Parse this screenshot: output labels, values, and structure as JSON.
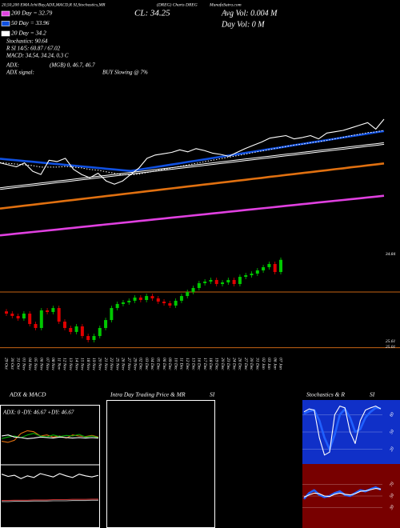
{
  "chart_data": [
    {
      "type": "line",
      "title": "20,50,200 EMA Ichi/Buy,ADX,MACD,R SI,Stochastics,MR",
      "subtitle": "(DREG) Charts DREG",
      "source": "MunafaSutra.com",
      "close_label": "CL: 34.25",
      "avg_vol": "Avg Vol: 0.004  M",
      "day_vol": "Day Vol: 0  M",
      "notes": [
        "Stochastics: 90.64",
        "R SI 14/5: 60.87 / 67.02",
        "MACD: 34.54, 34.24, 0.3 C",
        "ADX:",
        "(MGB) 0, 46.7, 46.7",
        "ADX signal:",
        "BUY Slowing @ 7%"
      ],
      "ylim": [
        18.5,
        49.8
      ],
      "series": [
        {
          "color": "#e040e0",
          "style": "thick",
          "name": "200 Day = 32.79",
          "values": [
            19.1,
            19.21,
            19.32,
            19.43,
            19.54,
            19.65,
            19.76,
            19.87,
            19.98,
            20.09,
            20.2,
            20.31,
            20.42,
            20.53,
            20.64,
            20.75,
            20.86,
            20.97,
            21.08,
            21.19,
            21.3,
            21.41,
            21.52,
            21.63,
            21.74,
            21.85,
            21.96,
            22.07,
            22.18,
            22.29,
            22.4,
            22.51,
            22.62,
            22.73,
            22.84,
            22.95,
            23.06,
            23.17,
            23.28,
            23.39,
            23.5,
            23.61,
            23.72,
            23.83,
            23.94,
            24.05,
            24.16,
            24.27
          ]
        },
        {
          "color": "#e07010",
          "style": "thick",
          "values": [
            22.6,
            22.73,
            22.85,
            22.98,
            23.1,
            23.23,
            23.35,
            23.48,
            23.6,
            23.73,
            23.85,
            23.98,
            24.1,
            24.23,
            24.35,
            24.48,
            24.6,
            24.73,
            24.85,
            24.98,
            25.1,
            25.23,
            25.35,
            25.48,
            25.6,
            25.73,
            25.85,
            25.98,
            26.1,
            26.23,
            26.35,
            26.48,
            26.6,
            26.73,
            26.85,
            26.98,
            27.1,
            27.23,
            27.35,
            27.48,
            27.6,
            27.73,
            27.85,
            27.98,
            28.1,
            28.23,
            28.35,
            28.48
          ]
        },
        {
          "color": "#ffffff",
          "style": "double",
          "values": [
            25.2,
            25.33,
            25.45,
            25.58,
            25.7,
            25.83,
            25.95,
            26.08,
            26.2,
            26.33,
            26.45,
            26.58,
            26.7,
            26.83,
            26.95,
            27.08,
            27.2,
            27.33,
            27.45,
            27.58,
            27.7,
            27.83,
            27.95,
            28.08,
            28.2,
            28.33,
            28.45,
            28.58,
            28.7,
            28.83,
            28.95,
            29.08,
            29.2,
            29.33,
            29.45,
            29.58,
            29.7,
            29.83,
            29.95,
            30.08,
            30.2,
            30.33,
            30.45,
            30.58,
            30.7,
            30.83,
            30.95,
            31.08
          ]
        },
        {
          "color": "#1050e0",
          "style": "thick",
          "name": "50 Day = 33.96",
          "values": [
            29.1,
            29.0,
            28.9,
            28.8,
            28.7,
            28.6,
            28.5,
            28.4,
            28.3,
            28.2,
            28.1,
            28.0,
            27.9,
            27.8,
            27.7,
            27.6,
            27.5,
            27.67,
            27.84,
            28.0,
            28.17,
            28.34,
            28.51,
            28.68,
            28.84,
            29.01,
            29.18,
            29.35,
            29.52,
            29.68,
            29.85,
            30.02,
            30.19,
            30.36,
            30.52,
            30.69,
            30.86,
            31.03,
            31.2,
            31.36,
            31.53,
            31.7,
            31.87,
            32.04,
            32.2,
            32.37,
            32.54,
            32.7
          ]
        },
        {
          "color": "#ffffff",
          "style": "dotted",
          "name": "20 Day = 34.2",
          "values": [
            28.6,
            28.5,
            28.4,
            28.3,
            28.2,
            28.0,
            28.0,
            28.0,
            28.1,
            28.0,
            27.9,
            27.7,
            27.6,
            27.4,
            27.2,
            27.0,
            27.0,
            27.1,
            27.3,
            27.5,
            27.7,
            27.9,
            28.1,
            28.3,
            28.5,
            28.7,
            28.9,
            29.1,
            29.3,
            29.5,
            29.7,
            29.9,
            30.1,
            30.3,
            30.5,
            30.7,
            30.9,
            31.0,
            31.2,
            31.3,
            31.5,
            31.7,
            31.9,
            32.1,
            32.3,
            32.5,
            32.6,
            32.8
          ]
        },
        {
          "color": "#ffffff",
          "style": "solid",
          "values": [
            28.56,
            28.31,
            28.05,
            28.56,
            27.46,
            27.04,
            28.9,
            28.73,
            29.15,
            27.71,
            27.04,
            26.62,
            27.21,
            26.19,
            25.77,
            26.19,
            27.04,
            27.88,
            29.15,
            29.58,
            29.75,
            29.92,
            30.26,
            30.0,
            30.42,
            30.17,
            29.83,
            29.66,
            29.41,
            29.92,
            30.42,
            30.85,
            31.27,
            31.78,
            31.95,
            32.12,
            31.69,
            31.86,
            32.12,
            31.69,
            32.45,
            32.62,
            32.79,
            33.13,
            33.47,
            33.81,
            32.96,
            34.25
          ]
        }
      ]
    },
    {
      "type": "candlestick",
      "categories": [
        "29 Oct",
        "30 Oct",
        "31 Oct",
        "01 Nov",
        "04 Nov",
        "05 Nov",
        "06 Nov",
        "07 Nov",
        "08 Nov",
        "11 Nov",
        "12 Nov",
        "13 Nov",
        "14 Nov",
        "15 Nov",
        "18 Nov",
        "19 Nov",
        "20 Nov",
        "21 Nov",
        "22 Nov",
        "25 Nov",
        "26 Nov",
        "27 Nov",
        "29 Nov",
        "02 Dec",
        "03 Dec",
        "04 Dec",
        "05 Dec",
        "06 Dec",
        "09 Dec",
        "10 Dec",
        "11 Dec",
        "12 Dec",
        "13 Dec",
        "16 Dec",
        "17 Dec",
        "18 Dec",
        "19 Dec",
        "20 Dec",
        "23 Dec",
        "24 Dec",
        "26 Dec",
        "27 Dec",
        "30 Dec",
        "31 Dec",
        "02 Jan",
        "03 Jan",
        "06 Jan",
        "07 Jan"
      ],
      "open": [
        28.8,
        28.56,
        28.31,
        28.05,
        28.56,
        27.46,
        27.04,
        28.9,
        28.73,
        29.15,
        27.71,
        27.04,
        26.62,
        27.21,
        26.19,
        25.77,
        26.19,
        27.04,
        27.88,
        29.15,
        29.58,
        29.75,
        29.92,
        30.26,
        30.0,
        30.42,
        30.17,
        29.83,
        29.66,
        29.41,
        29.92,
        30.42,
        30.85,
        31.27,
        31.78,
        31.95,
        32.12,
        31.69,
        31.86,
        32.12,
        31.69,
        32.45,
        32.62,
        32.79,
        33.13,
        33.47,
        33.81,
        32.96
      ],
      "high": [
        29.05,
        28.81,
        28.56,
        28.81,
        28.81,
        27.71,
        29.15,
        29.15,
        29.4,
        29.4,
        27.96,
        27.29,
        27.46,
        27.46,
        26.44,
        26.44,
        27.29,
        28.13,
        29.4,
        29.83,
        30.0,
        30.17,
        30.51,
        30.51,
        30.67,
        30.67,
        30.42,
        30.08,
        29.91,
        30.17,
        30.67,
        31.1,
        31.52,
        32.03,
        32.2,
        32.37,
        32.37,
        32.11,
        32.37,
        32.37,
        32.7,
        32.87,
        33.04,
        33.38,
        33.72,
        34.06,
        34.06,
        34.5
      ],
      "low": [
        28.31,
        28.06,
        27.8,
        27.8,
        27.21,
        26.79,
        26.79,
        28.48,
        28.48,
        27.46,
        26.79,
        26.37,
        26.37,
        25.94,
        25.52,
        25.52,
        25.94,
        26.79,
        27.63,
        28.9,
        29.33,
        29.5,
        29.67,
        29.75,
        29.75,
        29.92,
        29.58,
        29.41,
        29.16,
        29.16,
        29.67,
        30.17,
        30.6,
        31.02,
        31.53,
        31.7,
        31.44,
        31.44,
        31.61,
        31.44,
        31.44,
        32.2,
        32.37,
        32.54,
        32.88,
        33.22,
        32.71,
        32.71
      ],
      "close": [
        28.56,
        28.31,
        28.05,
        28.56,
        27.46,
        27.04,
        28.9,
        28.73,
        29.15,
        27.71,
        27.04,
        26.62,
        27.21,
        26.19,
        25.77,
        26.19,
        27.04,
        27.88,
        29.15,
        29.58,
        29.75,
        29.92,
        30.26,
        30.0,
        30.42,
        30.17,
        29.83,
        29.66,
        29.41,
        29.92,
        30.42,
        30.85,
        31.27,
        31.78,
        31.95,
        32.12,
        31.69,
        31.86,
        32.12,
        31.69,
        32.45,
        32.62,
        32.79,
        33.13,
        33.47,
        33.81,
        32.96,
        34.25
      ],
      "ylim": [
        24.5,
        35.5
      ],
      "yticks": [
        34.84,
        25.61,
        25.01
      ],
      "levels": [
        30.85,
        24.95
      ],
      "level_color": "#c86414",
      "up_color": "#00c800",
      "down_color": "#e00000"
    },
    {
      "type": "line",
      "title": "ADX  & MACD",
      "label": "ADX: 0  -DY: 46.67  +DY: 46.67",
      "categories": [
        null,
        null,
        null,
        null,
        null,
        null,
        null,
        null,
        null,
        null,
        null,
        null,
        null,
        null,
        null,
        null
      ],
      "ylim": [
        0,
        100
      ],
      "series": [
        {
          "color": "#e07010",
          "values": [
            40,
            38,
            42,
            55,
            60,
            58,
            50,
            52,
            48,
            50,
            46,
            52,
            50,
            49,
            51,
            48
          ]
        },
        {
          "color": "#00b000",
          "values": [
            45,
            48,
            50,
            47,
            52,
            55,
            50,
            48,
            52,
            49,
            51,
            50,
            53,
            48,
            50,
            47
          ]
        },
        {
          "color": "#ffffff",
          "values": [
            50,
            52,
            48,
            47,
            45,
            46,
            48,
            47,
            46,
            48,
            47,
            46,
            47,
            46,
            47,
            46
          ]
        }
      ]
    },
    {
      "type": "line",
      "categories": [
        null,
        null,
        null,
        null,
        null,
        null,
        null,
        null,
        null,
        null,
        null,
        null,
        null,
        null,
        null,
        null
      ],
      "ylim": [
        -1,
        1
      ],
      "series": [
        {
          "color": "#ffffff",
          "values": [
            0.78,
            0.7,
            0.74,
            0.62,
            0.72,
            0.66,
            0.8,
            0.74,
            0.68,
            0.8,
            0.72,
            0.66,
            0.78,
            0.72,
            0.68,
            0.74
          ]
        },
        {
          "color": "#c03030",
          "values": [
            -0.16,
            -0.16,
            -0.15,
            -0.15,
            -0.15,
            -0.14,
            -0.14,
            -0.14,
            -0.13,
            -0.13,
            -0.13,
            -0.12,
            -0.12,
            -0.12,
            -0.11,
            -0.11
          ]
        },
        {
          "color": "#aaaaaa",
          "values": [
            -0.2,
            -0.2,
            -0.19,
            -0.19,
            -0.19,
            -0.18,
            -0.18,
            -0.18,
            -0.17,
            -0.17,
            -0.17,
            -0.16,
            -0.16,
            -0.16,
            -0.15,
            -0.15
          ]
        }
      ]
    },
    {
      "type": "line",
      "title": "Intra Day Trading Price  & MR",
      "subtitle": "SI"
    },
    {
      "type": "line",
      "title": "Stochastics & R",
      "subtitle": "SI",
      "categories": [
        null,
        null,
        null,
        null,
        null,
        null,
        null,
        null,
        null,
        null,
        null,
        null,
        null,
        null,
        null,
        null
      ],
      "ylim": [
        0,
        100
      ],
      "yticks": [
        80,
        50,
        20
      ],
      "background": "#1030c8",
      "series": [
        {
          "color": "#2060ff",
          "style": "thick",
          "values": [
            82,
            86,
            88,
            70,
            40,
            20,
            45,
            80,
            90,
            75,
            50,
            55,
            75,
            85,
            92,
            91
          ]
        },
        {
          "color": "#ffffff",
          "style": "solid",
          "values": [
            85,
            90,
            88,
            40,
            10,
            15,
            80,
            95,
            92,
            50,
            30,
            70,
            88,
            92,
            95,
            90
          ]
        }
      ]
    },
    {
      "type": "line",
      "categories": [
        null,
        null,
        null,
        null,
        null,
        null,
        null,
        null,
        null,
        null,
        null,
        null,
        null,
        null,
        null,
        null
      ],
      "ylim": [
        0,
        100
      ],
      "yticks": [
        70,
        50,
        30
      ],
      "background": "#780000",
      "series": [
        {
          "color": "#2060ff",
          "style": "thick",
          "values": [
            45,
            55,
            60,
            52,
            48,
            50,
            55,
            58,
            52,
            50,
            55,
            60,
            58,
            62,
            65,
            61
          ]
        },
        {
          "color": "#ffffff",
          "style": "solid",
          "values": [
            48,
            52,
            55,
            54,
            50,
            49,
            53,
            55,
            53,
            52,
            54,
            58,
            59,
            61,
            63,
            62
          ]
        }
      ]
    }
  ]
}
